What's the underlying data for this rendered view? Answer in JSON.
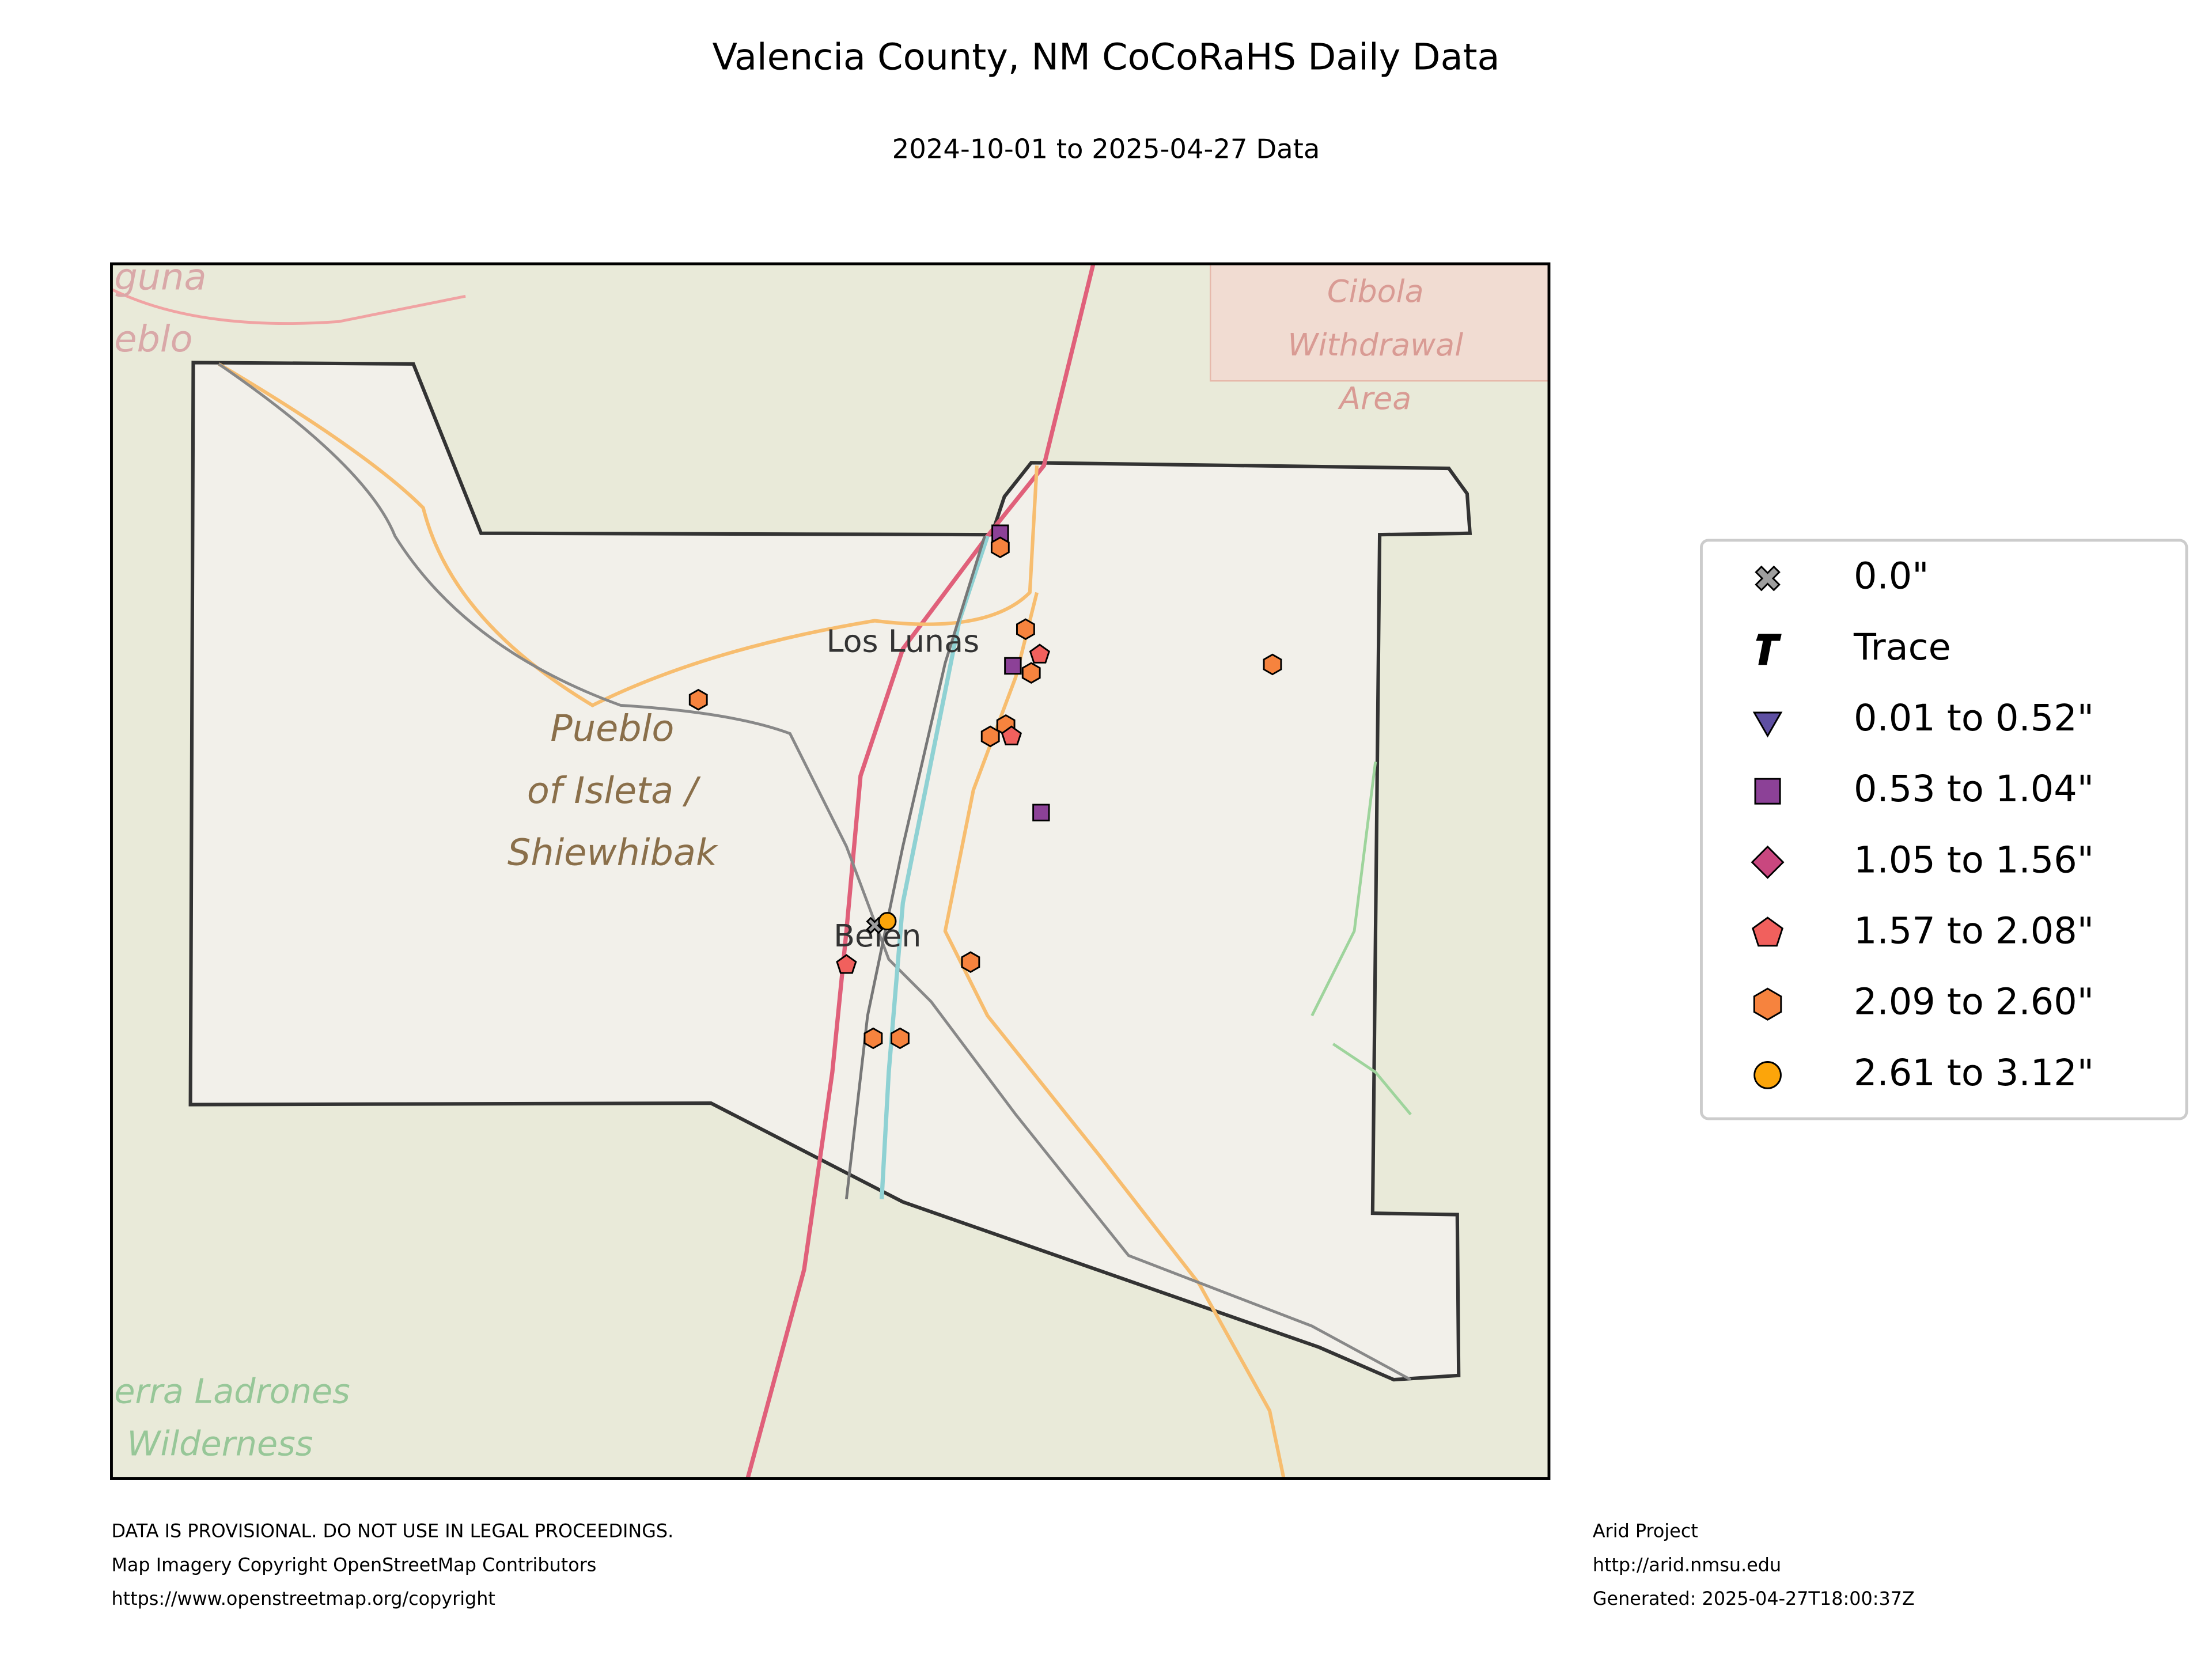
{
  "header": {
    "title": "Valencia County, NM CoCoRaHS Daily Data",
    "subtitle": "2024-10-01 to 2025-04-27 Data"
  },
  "map": {
    "labels": {
      "towns": [
        "Los Lunas",
        "Belen"
      ],
      "pueblo": [
        "Pueblo",
        "of Isleta /",
        "Shiewhibak"
      ],
      "cibola": [
        "Cibola",
        "Withdrawal",
        "Area"
      ],
      "laguna": [
        "guna",
        "eblo"
      ],
      "ladrones": [
        "erra Ladrones",
        "Wilderness"
      ]
    }
  },
  "legend": {
    "items": [
      {
        "label": "0.0\"",
        "color": "#9e9e9e"
      },
      {
        "label": "Trace",
        "color": "#000000"
      },
      {
        "label": "0.01 to 0.52\"",
        "color": "#5e4fa2"
      },
      {
        "label": "0.53 to 1.04\"",
        "color": "#8c4197"
      },
      {
        "label": "1.05 to 1.56\"",
        "color": "#c9477f"
      },
      {
        "label": "1.57 to 2.08\"",
        "color": "#f1605d"
      },
      {
        "label": "2.09 to 2.60\"",
        "color": "#f6833e"
      },
      {
        "label": "2.61 to 3.12\"",
        "color": "#fca50a"
      }
    ]
  },
  "footer": {
    "left": [
      "DATA IS PROVISIONAL. DO NOT USE IN LEGAL PROCEEDINGS.",
      "Map Imagery Copyright OpenStreetMap Contributors",
      "https://www.openstreetmap.org/copyright"
    ],
    "right": [
      "Arid Project",
      "http://arid.nmsu.edu",
      "Generated: 2025-04-27T18:00:37Z"
    ]
  }
}
